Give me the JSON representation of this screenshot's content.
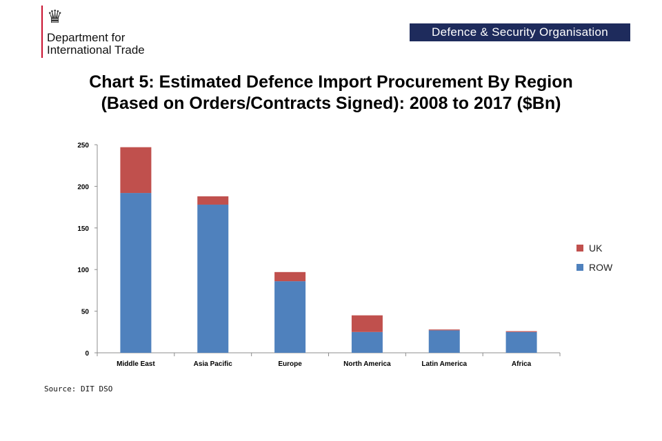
{
  "header": {
    "department": "Department for\nInternational Trade",
    "organisation": "Defence & Security Organisation"
  },
  "title_lines": [
    "Chart 5: Estimated Defence Import Procurement By Region",
    "(Based on Orders/Contracts Signed): 2008 to 2017 ($Bn)"
  ],
  "source": "Source: DIT DSO",
  "chart_data": {
    "type": "bar",
    "stacked": true,
    "title": "Chart 5: Estimated Defence Import Procurement By Region (Based on Orders/Contracts Signed): 2008 to 2017 ($Bn)",
    "categories": [
      "Middle East",
      "Asia Pacific",
      "Europe",
      "North America",
      "Latin America",
      "Africa"
    ],
    "series": [
      {
        "name": "ROW",
        "color": "#4f81bd",
        "values": [
          192,
          178,
          86,
          25,
          27,
          25
        ]
      },
      {
        "name": "UK",
        "color": "#c0504d",
        "values": [
          55,
          10,
          11,
          20,
          1,
          1
        ]
      }
    ],
    "ylim": [
      0,
      250
    ],
    "yticks": [
      0,
      50,
      100,
      150,
      200,
      250
    ],
    "legend": "right",
    "grid": false
  }
}
